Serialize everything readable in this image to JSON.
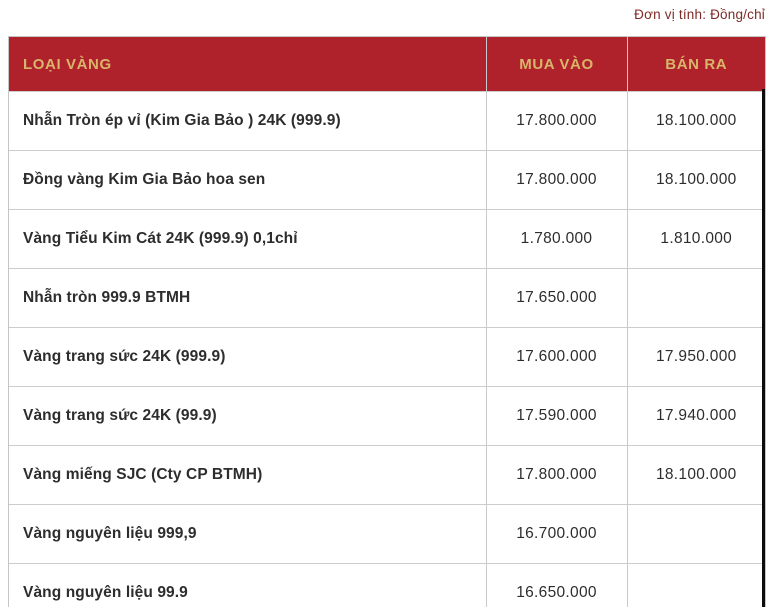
{
  "page": {
    "unit_label": "Đơn vị tính: Đồng/chỉ"
  },
  "table": {
    "columns": [
      {
        "label": "LOẠI VÀNG"
      },
      {
        "label": "MUA VÀO"
      },
      {
        "label": "BÁN RA"
      }
    ],
    "rows": [
      {
        "label": "Nhẫn Tròn ép vỉ (Kim Gia Bảo ) 24K (999.9)",
        "buy": "17.800.000",
        "sell": "18.100.000"
      },
      {
        "label": "Đồng vàng Kim Gia Bảo hoa sen",
        "buy": "17.800.000",
        "sell": "18.100.000"
      },
      {
        "label": "Vàng Tiểu Kim Cát 24K (999.9) 0,1chỉ",
        "buy": "1.780.000",
        "sell": "1.810.000"
      },
      {
        "label": "Nhẫn tròn 999.9 BTMH",
        "buy": "17.650.000",
        "sell": ""
      },
      {
        "label": "Vàng trang sức 24K (999.9)",
        "buy": "17.600.000",
        "sell": "17.950.000"
      },
      {
        "label": "Vàng trang sức 24K (99.9)",
        "buy": "17.590.000",
        "sell": "17.940.000"
      },
      {
        "label": "Vàng miếng SJC (Cty CP BTMH)",
        "buy": "17.800.000",
        "sell": "18.100.000"
      },
      {
        "label": "Vàng nguyên liệu 999,9",
        "buy": "16.700.000",
        "sell": ""
      },
      {
        "label": "Vàng nguyên liệu 99.9",
        "buy": "16.650.000",
        "sell": ""
      }
    ]
  },
  "colors": {
    "header_bg": "#B0222B",
    "header_text": "#D8B56A",
    "row_text": "#2D2D2D",
    "border": "#CCCCCC",
    "unit_text": "#7D2B26",
    "scrollbar": "#0C0C0C"
  }
}
